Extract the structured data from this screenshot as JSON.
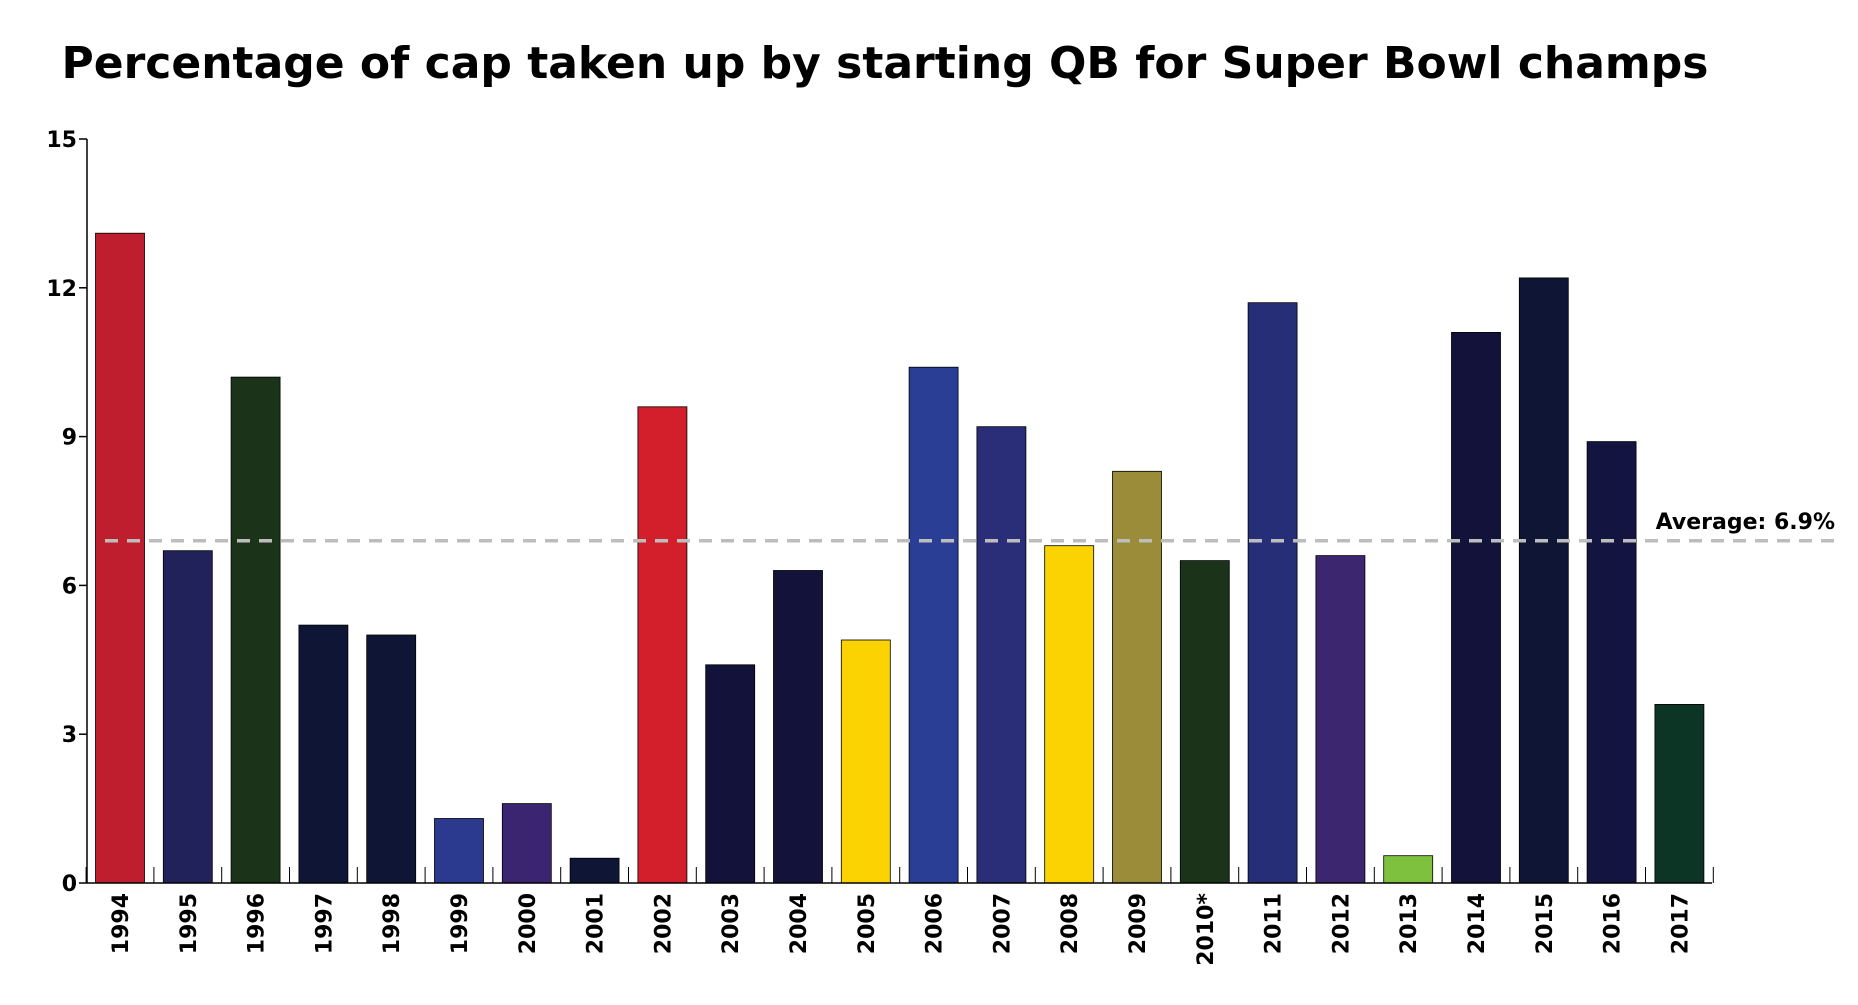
{
  "chart_data": {
    "type": "bar",
    "title": "Percentage of cap taken up by starting QB for Super Bowl champs",
    "xlabel": "",
    "ylabel": "",
    "ylim": [
      0,
      15
    ],
    "yticks": [
      0,
      3,
      6,
      9,
      12,
      15
    ],
    "grid": false,
    "categories": [
      "1994",
      "1995",
      "1996",
      "1997",
      "1998",
      "1999",
      "2000",
      "2001",
      "2002",
      "2003",
      "2004",
      "2005",
      "2006",
      "2007",
      "2008",
      "2009",
      "2010*",
      "2011",
      "2012",
      "2013",
      "2014",
      "2015",
      "2016",
      "2017"
    ],
    "values": [
      13.1,
      6.7,
      10.2,
      5.2,
      5.0,
      1.3,
      1.6,
      0.5,
      9.6,
      4.4,
      6.3,
      4.9,
      10.4,
      9.2,
      6.8,
      8.3,
      6.5,
      11.7,
      6.6,
      0.55,
      11.1,
      12.2,
      8.9,
      3.6
    ],
    "colors": [
      "#be1e2d",
      "#22225a",
      "#1a3319",
      "#0f1635",
      "#0f1635",
      "#2b3a8f",
      "#3b2570",
      "#0f1635",
      "#d21f2b",
      "#12123a",
      "#12123a",
      "#fbd302",
      "#2b3e96",
      "#2a2d78",
      "#fbd302",
      "#9b8c3a",
      "#1a3319",
      "#272e78",
      "#3d2670",
      "#7ec13f",
      "#12123a",
      "#0f1635",
      "#141441",
      "#0c3526"
    ],
    "average": {
      "value": 6.9,
      "label": "Average: 6.9%"
    }
  }
}
